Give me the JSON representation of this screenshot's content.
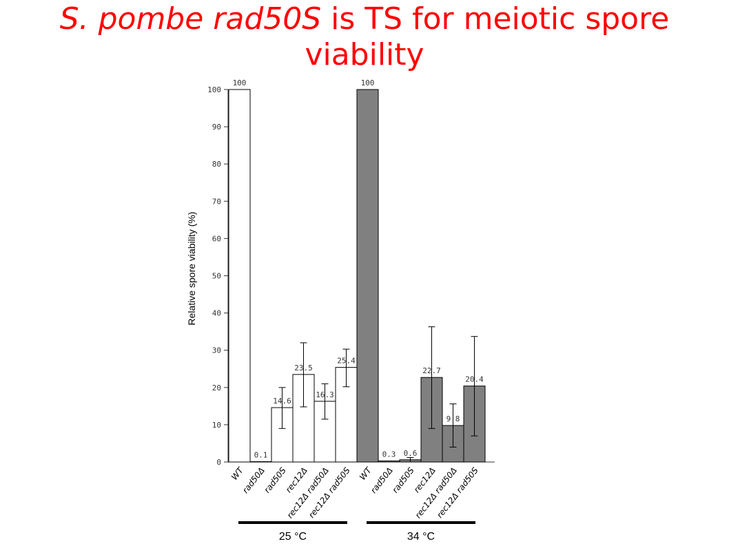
{
  "title": {
    "italic_part": "S. pombe rad50S",
    "rest": " is TS for meiotic spore viability"
  },
  "chart_data": {
    "type": "bar",
    "ylabel": "Relative spore viability (%)",
    "ylim": [
      0,
      100
    ],
    "yticks": [
      0,
      10,
      20,
      30,
      40,
      50,
      60,
      70,
      80,
      90,
      100
    ],
    "categories": [
      "WT",
      "rad50Δ",
      "rad50S",
      "rec12Δ",
      "rec12Δ rad50Δ",
      "rec12Δ rad50S",
      "WT",
      "rad50Δ",
      "rad50S",
      "rec12Δ",
      "rec12Δ rad50Δ",
      "rec12Δ rad50S"
    ],
    "values": [
      100,
      0.1,
      14.6,
      23.5,
      16.3,
      25.4,
      100,
      0.3,
      0.6,
      22.7,
      9.8,
      20.4
    ],
    "value_labels": [
      "100",
      "0.1",
      "14.6",
      "23.5",
      "16.3",
      "25.4",
      "100",
      "0.3",
      "0.6",
      "22.7",
      "9.8",
      "20.4"
    ],
    "error_low": [
      null,
      null,
      9.0,
      14.8,
      11.5,
      20.2,
      null,
      null,
      0.0,
      9.0,
      4.0,
      7.0
    ],
    "error_high": [
      null,
      null,
      20.0,
      32.0,
      21.0,
      30.3,
      null,
      null,
      1.2,
      36.3,
      15.6,
      33.7
    ],
    "groups": [
      {
        "label": "25 °C",
        "start": 0,
        "end": 5,
        "color": "#ffffff"
      },
      {
        "label": "34 °C",
        "start": 6,
        "end": 11,
        "color": "#808080"
      }
    ],
    "grid": false
  }
}
